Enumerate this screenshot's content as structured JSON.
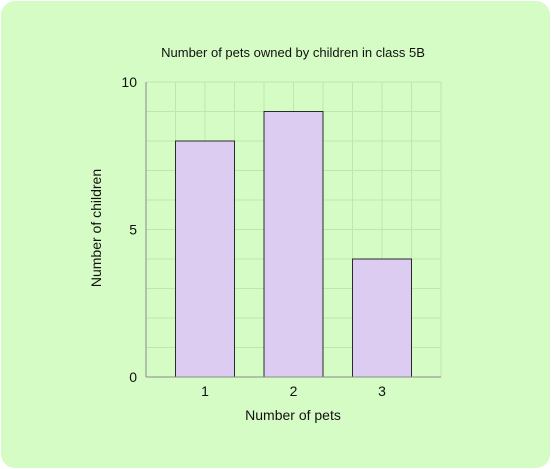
{
  "chart_data": {
    "type": "bar",
    "title": "Number of pets owned by children in class 5B",
    "xlabel": "Number of pets",
    "ylabel": "Number of children",
    "categories": [
      "1",
      "2",
      "3"
    ],
    "values": [
      8,
      9,
      4
    ],
    "ylim": [
      0,
      10
    ],
    "yticks": [
      "0",
      "5",
      "10"
    ],
    "grid": true,
    "colors": {
      "background": "#d6fcc5",
      "bar_fill": "#dcccf2",
      "bar_stroke": "#2a2a2a",
      "grid": "#bde8aa",
      "axis": "#8a8a8a"
    }
  }
}
